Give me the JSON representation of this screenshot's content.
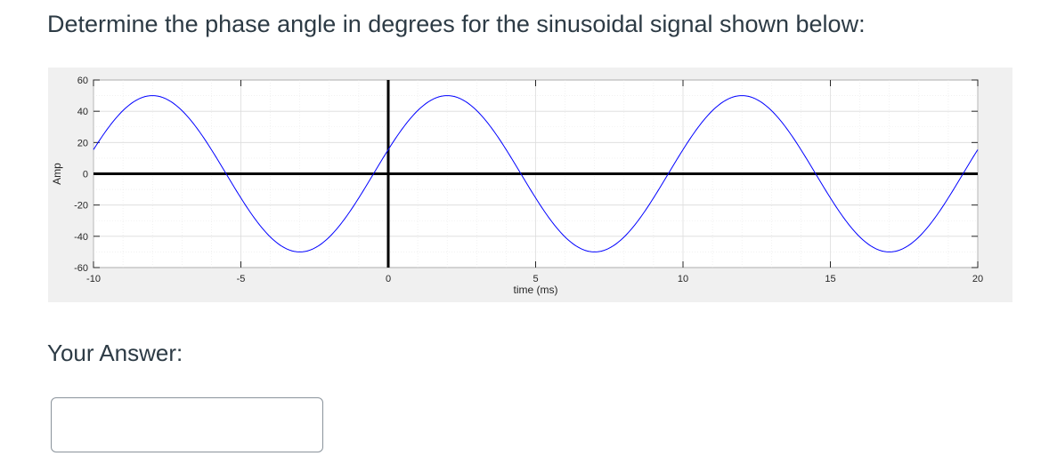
{
  "question": {
    "text": "Determine the phase angle in degrees for the sinusoidal signal shown below:"
  },
  "answer": {
    "label": "Your Answer:",
    "value": "",
    "placeholder": ""
  },
  "chart_data": {
    "type": "line",
    "title": "",
    "xlabel": "time (ms)",
    "ylabel": "Amp",
    "xlim": [
      -10,
      20
    ],
    "ylim": [
      -60,
      60
    ],
    "xticks": [
      -10,
      -5,
      0,
      5,
      10,
      15,
      20
    ],
    "yticks": [
      -60,
      -40,
      -20,
      0,
      20,
      40,
      60
    ],
    "grid": true,
    "series": [
      {
        "name": "",
        "color": "#0000ff",
        "function": "sine",
        "amplitude": 50,
        "period_ms": 10,
        "peak_times_ms": [
          -8,
          2,
          12
        ],
        "trough_times_ms": [
          -3,
          7,
          17
        ],
        "x": [
          -10,
          -8,
          -5.5,
          -3,
          -0.5,
          2,
          4.5,
          7,
          9.5,
          12,
          14.5,
          17,
          19.5,
          20
        ],
        "y": [
          15.5,
          50,
          0,
          -50,
          0,
          50,
          0,
          -50,
          0,
          50,
          0,
          -50,
          0,
          15.5
        ]
      }
    ],
    "reference_lines": {
      "x0_color": "#000000",
      "y0_color": "#000000"
    }
  }
}
